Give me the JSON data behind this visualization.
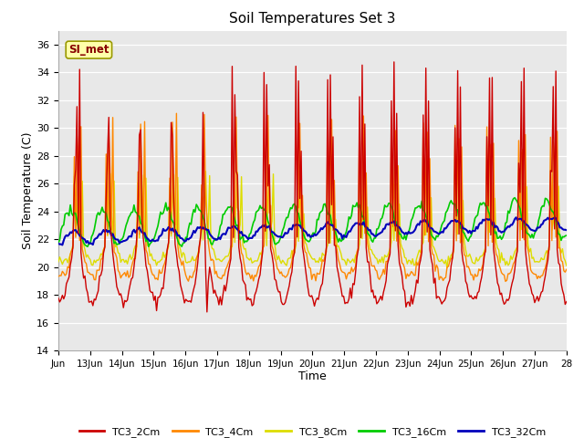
{
  "title": "Soil Temperatures Set 3",
  "xlabel": "Time",
  "ylabel": "Soil Temperature (C)",
  "ylim": [
    14,
    37
  ],
  "yticks": [
    14,
    16,
    18,
    20,
    22,
    24,
    26,
    28,
    30,
    32,
    34,
    36
  ],
  "xlim_days": 16,
  "xtick_positions": [
    0,
    1,
    2,
    3,
    4,
    5,
    6,
    7,
    8,
    9,
    10,
    11,
    12,
    13,
    14,
    15,
    16
  ],
  "xtick_labels": [
    "Jun",
    "13Jun",
    "14Jun",
    "15Jun",
    "16Jun",
    "17Jun",
    "18Jun",
    "19Jun",
    "20Jun",
    "21Jun",
    "22Jun",
    "23Jun",
    "24Jun",
    "25Jun",
    "26Jun",
    "27Jun",
    "28"
  ],
  "fig_bg": "#ffffff",
  "plot_bg": "#e8e8e8",
  "grid_color": "#ffffff",
  "lines": {
    "TC3_2Cm": {
      "color": "#cc0000",
      "lw": 1.0,
      "zorder": 7
    },
    "TC3_4Cm": {
      "color": "#ff8800",
      "lw": 1.0,
      "zorder": 4
    },
    "TC3_8Cm": {
      "color": "#dddd00",
      "lw": 1.0,
      "zorder": 3
    },
    "TC3_16Cm": {
      "color": "#00cc00",
      "lw": 1.2,
      "zorder": 5
    },
    "TC3_32Cm": {
      "color": "#0000bb",
      "lw": 1.5,
      "zorder": 6
    }
  },
  "annotation_text": "SI_met",
  "annotation_color": "#880000",
  "annotation_bg": "#ffffaa",
  "annotation_edge": "#999900",
  "legend_labels": [
    "TC3_2Cm",
    "TC3_4Cm",
    "TC3_8Cm",
    "TC3_16Cm",
    "TC3_32Cm"
  ],
  "n_points": 384
}
